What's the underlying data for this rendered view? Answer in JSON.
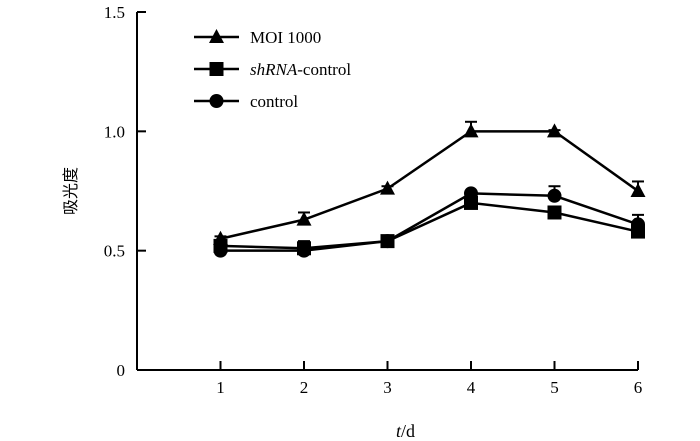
{
  "chart_data": {
    "type": "line",
    "title": "",
    "ylabel": "吸光度",
    "xlabel": {
      "italic": "t",
      "rest": "/d"
    },
    "x": [
      1,
      2,
      3,
      4,
      5,
      6
    ],
    "xlim": [
      0,
      6
    ],
    "ylim": [
      0,
      1.5
    ],
    "yticks": [
      0,
      0.5,
      1.0,
      1.5
    ],
    "ytick_labels": [
      "0",
      "0.5",
      "1.0",
      "1.5"
    ],
    "grid": false,
    "legend_position": "top-left",
    "series": [
      {
        "name": "MOI 1000",
        "name_parts": [
          {
            "text": "MOI 1000",
            "italic": false
          }
        ],
        "marker": "triangle",
        "values": [
          0.55,
          0.63,
          0.76,
          1.0,
          1.0,
          0.75
        ],
        "errors": [
          0.01,
          0.03,
          0.01,
          0.04,
          0.005,
          0.04
        ]
      },
      {
        "name": "shRNA-control",
        "name_parts": [
          {
            "text": "shRNA",
            "italic": true
          },
          {
            "text": "-control",
            "italic": false
          }
        ],
        "marker": "square",
        "values": [
          0.52,
          0.51,
          0.54,
          0.7,
          0.66,
          0.58
        ],
        "errors": [
          0.01,
          0.03,
          0.01,
          0.01,
          0.01,
          0.02
        ]
      },
      {
        "name": "control",
        "name_parts": [
          {
            "text": "control",
            "italic": false
          }
        ],
        "marker": "circle",
        "values": [
          0.5,
          0.5,
          0.54,
          0.74,
          0.73,
          0.61
        ],
        "errors": [
          0.01,
          0.02,
          0.01,
          0.01,
          0.04,
          0.04
        ]
      }
    ]
  }
}
